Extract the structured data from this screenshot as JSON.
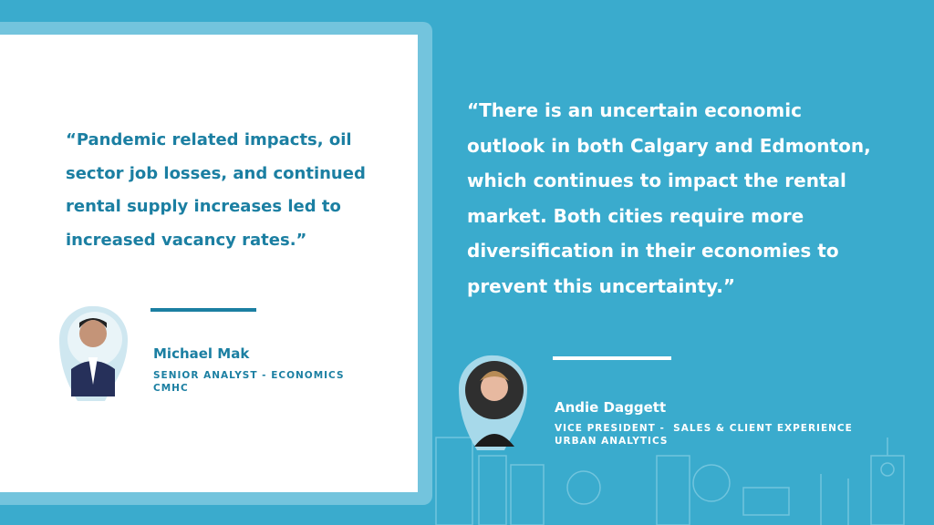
{
  "left": {
    "quote_lines": [
      "“Pandemic related impacts, oil",
      "sector job losses, and continued",
      "rental supply increases led to",
      "increased vacancy rates.”"
    ],
    "name": "Michael Mak",
    "title": "SENIOR ANALYST - ECONOMICS",
    "organization": "CMHC"
  },
  "right": {
    "quote_lines": [
      "“There is an uncertain economic",
      "outlook in both Calgary and Edmonton,",
      "which continues to impact the rental",
      "market. Both cities require more",
      "diversification in their economies to",
      "prevent this uncertainty.”"
    ],
    "name": "Andie Daggett",
    "title": "VICE PRESIDENT -  SALES & CLIENT EXPERIENCE",
    "organization": "URBAN ANALYTICS"
  }
}
